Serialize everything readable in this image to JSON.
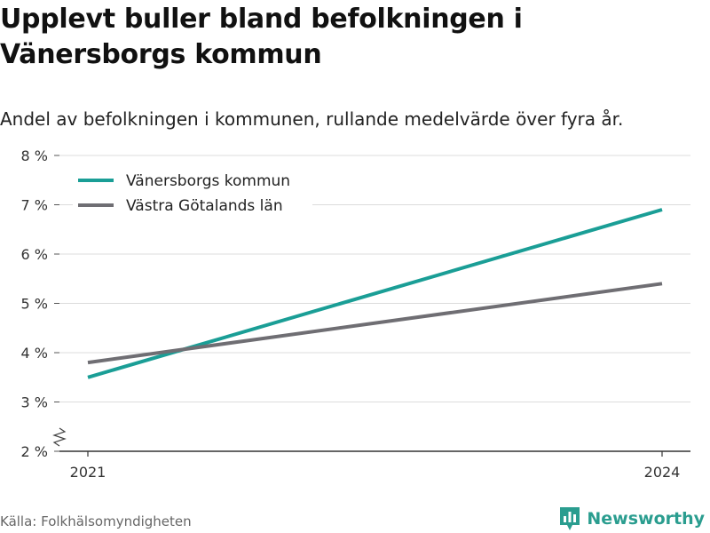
{
  "title": "Upplevt buller bland befolkningen i Vänersborgs kommun",
  "subtitle": "Andel av befolkningen i kommunen, rullande medelvärde över fyra år.",
  "source": "Källa: Folkhälsomyndigheten",
  "brand": {
    "name": "Newsworthy",
    "icon": "bar-chart-badge-icon"
  },
  "colors": {
    "series_1": "#1a9e96",
    "series_2": "#6f6e73",
    "brand": "#2a9d8f"
  },
  "chart_data": {
    "type": "line",
    "x": [
      2021,
      2024
    ],
    "xticks": [
      "2021",
      "2024"
    ],
    "ylim": [
      2,
      8
    ],
    "yticks": [
      "2 %",
      "3 %",
      "4 %",
      "5 %",
      "6 %",
      "7 %",
      "8 %"
    ],
    "y_axis_break": true,
    "grid": true,
    "legend_position": "top-left",
    "series": [
      {
        "name": "Vänersborgs kommun",
        "values": [
          3.5,
          6.9
        ]
      },
      {
        "name": "Västra Götalands län",
        "values": [
          3.8,
          5.4
        ]
      }
    ]
  }
}
